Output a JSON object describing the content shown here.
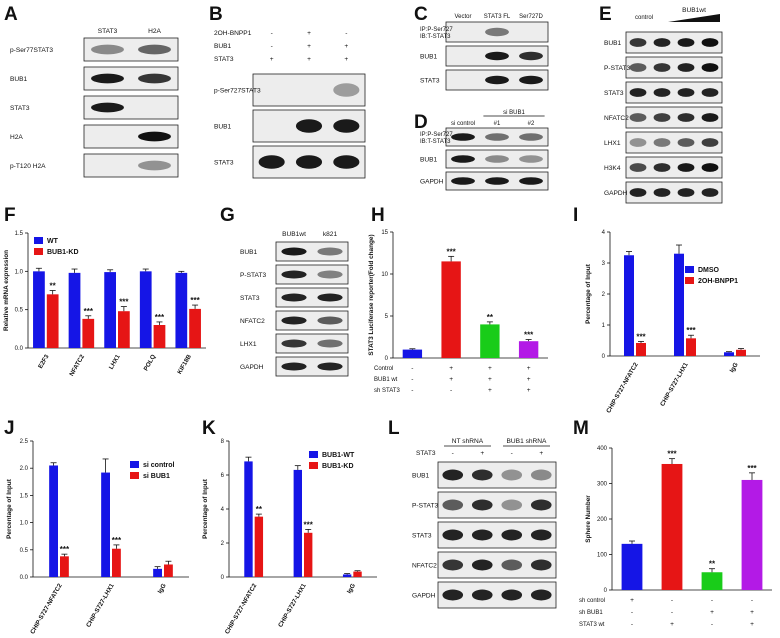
{
  "panels": {
    "A": "A",
    "B": "B",
    "C": "C",
    "D": "D",
    "E": "E",
    "F": "F",
    "G": "G",
    "H": "H",
    "I": "I",
    "J": "J",
    "K": "K",
    "L": "L",
    "M": "M"
  },
  "blots": {
    "A": {
      "lanes": [
        "STAT3",
        "H2A"
      ],
      "rows": [
        {
          "label": "p-Ser77STAT3",
          "bands": [
            0.35,
            0.55
          ]
        },
        {
          "label": "BUB1",
          "bands": [
            0.95,
            0.8
          ]
        },
        {
          "label": "STAT3",
          "bands": [
            0.95,
            0
          ]
        },
        {
          "label": "H2A",
          "bands": [
            0,
            1
          ]
        },
        {
          "label": "p-T120 H2A",
          "bands": [
            0,
            0.3
          ]
        }
      ]
    },
    "B": {
      "conditions": [
        {
          "label": "2OH-BNPP1",
          "marks": [
            "-",
            "+",
            "-"
          ]
        },
        {
          "label": "BUB1",
          "marks": [
            "-",
            "+",
            "+"
          ]
        },
        {
          "label": "STAT3",
          "marks": [
            "+",
            "+",
            "+"
          ]
        }
      ],
      "rows": [
        {
          "label": "p-Ser727STAT3",
          "bands": [
            0,
            0,
            0.25
          ]
        },
        {
          "label": "BUB1",
          "bands": [
            0,
            0.95,
            0.95
          ]
        },
        {
          "label": "STAT3",
          "bands": [
            0.95,
            0.95,
            0.95
          ]
        }
      ]
    },
    "C": {
      "lanes": [
        "Vector",
        "STAT3 FL",
        "Ser727D"
      ],
      "rows": [
        {
          "label1": "IP:P-Ser727",
          "label2": "IB:T-STAT3",
          "bands": [
            0,
            0.45,
            0
          ]
        },
        {
          "label": "BUB1",
          "bands": [
            0,
            0.95,
            0.85
          ]
        },
        {
          "label": "STAT3",
          "bands": [
            0,
            0.95,
            0.95
          ]
        }
      ]
    },
    "D": {
      "lanes": [
        "si control",
        "#1",
        "#2"
      ],
      "group": "si BUB1",
      "rows": [
        {
          "label1": "IP:P-Ser727",
          "label2": "IB:T-STAT3",
          "bands": [
            0.95,
            0.5,
            0.5
          ]
        },
        {
          "label": "BUB1",
          "bands": [
            0.95,
            0.35,
            0.3
          ]
        },
        {
          "label": "GAPDH",
          "bands": [
            0.95,
            0.95,
            0.95
          ]
        }
      ]
    },
    "E": {
      "lanes": [
        "control"
      ],
      "group": "BUB1wt",
      "rows": [
        {
          "label": "BUB1",
          "bands": [
            0.8,
            0.9,
            0.95,
            1
          ]
        },
        {
          "label": "P-STAT3",
          "bands": [
            0.6,
            0.8,
            0.9,
            1
          ]
        },
        {
          "label": "STAT3",
          "bands": [
            0.9,
            0.9,
            0.9,
            0.9
          ]
        },
        {
          "label": "NFATC2",
          "bands": [
            0.6,
            0.75,
            0.85,
            0.95
          ]
        },
        {
          "label": "LHX1",
          "bands": [
            0.3,
            0.45,
            0.6,
            0.75
          ]
        },
        {
          "label": "H3K4",
          "bands": [
            0.7,
            0.85,
            0.95,
            1
          ]
        },
        {
          "label": "GAPDH",
          "bands": [
            0.9,
            0.9,
            0.9,
            0.9
          ]
        }
      ]
    },
    "G": {
      "lanes": [
        "BUB1wt",
        "k821"
      ],
      "rows": [
        {
          "label": "BUB1",
          "bands": [
            0.95,
            0.45
          ]
        },
        {
          "label": "P-STAT3",
          "bands": [
            0.9,
            0.4
          ]
        },
        {
          "label": "STAT3",
          "bands": [
            0.9,
            0.9
          ]
        },
        {
          "label": "NFATC2",
          "bands": [
            0.9,
            0.6
          ]
        },
        {
          "label": "LHX1",
          "bands": [
            0.8,
            0.5
          ]
        },
        {
          "label": "GAPDH",
          "bands": [
            0.9,
            0.9
          ]
        }
      ]
    },
    "L": {
      "groups": [
        "NT shRNA",
        "BUB1 shRNA"
      ],
      "condition": {
        "label": "STAT3",
        "marks": [
          "-",
          "+",
          "-",
          "+"
        ]
      },
      "rows": [
        {
          "label": "BUB1",
          "bands": [
            0.9,
            0.85,
            0.3,
            0.35
          ]
        },
        {
          "label": "P-STAT3",
          "bands": [
            0.6,
            0.85,
            0.3,
            0.85
          ]
        },
        {
          "label": "STAT3",
          "bands": [
            0.9,
            0.9,
            0.9,
            0.9
          ]
        },
        {
          "label": "NFATC2",
          "bands": [
            0.8,
            0.9,
            0.6,
            0.85
          ]
        },
        {
          "label": "GAPDH",
          "bands": [
            0.9,
            0.9,
            0.9,
            0.9
          ]
        }
      ]
    }
  },
  "chart_data": [
    {
      "panel": "F",
      "type": "bar",
      "ylabel": "Relative  mRNA expression",
      "ylim": [
        0,
        1.5
      ],
      "yticks": [
        "0.0",
        "0.5",
        "1.0",
        "1.5"
      ],
      "categories": [
        "E2F3",
        "NFATC2",
        "LHX1",
        "POLQ",
        "KIF18B"
      ],
      "series": [
        {
          "name": "WT",
          "color": "#1515e6",
          "values": [
            1.0,
            0.98,
            0.99,
            1.0,
            0.98
          ],
          "errors": [
            0.04,
            0.05,
            0.03,
            0.03,
            0.02
          ],
          "stars": [
            "",
            "",
            "",
            "",
            ""
          ]
        },
        {
          "name": "BUB1-KD",
          "color": "#e61515",
          "values": [
            0.7,
            0.38,
            0.48,
            0.3,
            0.51
          ],
          "errors": [
            0.05,
            0.04,
            0.06,
            0.04,
            0.05
          ],
          "stars": [
            "**",
            "***",
            "***",
            "***",
            "***"
          ]
        }
      ]
    },
    {
      "panel": "H",
      "type": "bar",
      "ylabel": "STAT3 Luciferase reporter(Fold change)",
      "ylim": [
        0,
        15
      ],
      "yticks": [
        "0",
        "5",
        "10",
        "15"
      ],
      "bars": [
        {
          "value": 1.0,
          "error": 0.1,
          "color": "#1515e6",
          "star": ""
        },
        {
          "value": 11.5,
          "error": 0.6,
          "color": "#e61515",
          "star": "***"
        },
        {
          "value": 4.0,
          "error": 0.3,
          "color": "#19cc19",
          "star": "**"
        },
        {
          "value": 2.0,
          "error": 0.2,
          "color": "#b31ae6",
          "star": "***"
        }
      ],
      "conditions": [
        {
          "label": "Control",
          "marks": [
            "-",
            "+",
            "+",
            "+"
          ]
        },
        {
          "label": "BUB1 wt",
          "marks": [
            "-",
            "+",
            "+",
            "+"
          ]
        },
        {
          "label": "sh STAT3",
          "marks": [
            "-",
            "-",
            "+",
            "+"
          ]
        }
      ]
    },
    {
      "panel": "I",
      "type": "bar",
      "ylabel": "Percentage of Input",
      "ylim": [
        0,
        4
      ],
      "yticks": [
        "0",
        "1",
        "2",
        "3",
        "4"
      ],
      "categories": [
        "CHIP-S727-NFATC2",
        "CHIP-S727-LHX1",
        "IgG"
      ],
      "series": [
        {
          "name": "DMSO",
          "color": "#1515e6",
          "values": [
            3.25,
            3.3,
            0.12
          ],
          "errors": [
            0.12,
            0.28,
            0.02
          ],
          "stars": [
            "",
            "",
            ""
          ]
        },
        {
          "name": "2OH-BNPP1",
          "color": "#e61515",
          "values": [
            0.42,
            0.57,
            0.2
          ],
          "errors": [
            0.05,
            0.1,
            0.04
          ],
          "stars": [
            "***",
            "***",
            ""
          ]
        }
      ]
    },
    {
      "panel": "J",
      "type": "bar",
      "ylabel": "Percentage of Input",
      "ylim": [
        0,
        2.5
      ],
      "yticks": [
        "0.0",
        "0.5",
        "1.0",
        "1.5",
        "2.0",
        "2.5"
      ],
      "categories": [
        "CHIP-S727-NFATC2",
        "CHIP-S727-LHX1",
        "IgG"
      ],
      "series": [
        {
          "name": "si control",
          "color": "#1515e6",
          "values": [
            2.05,
            1.92,
            0.15
          ],
          "errors": [
            0.05,
            0.25,
            0.04
          ],
          "stars": [
            "",
            "",
            ""
          ]
        },
        {
          "name": "si BUB1",
          "color": "#e61515",
          "values": [
            0.38,
            0.52,
            0.23
          ],
          "errors": [
            0.04,
            0.07,
            0.06
          ],
          "stars": [
            "***",
            "***",
            ""
          ]
        }
      ]
    },
    {
      "panel": "K",
      "type": "bar",
      "ylabel": "Percentage of Input",
      "ylim": [
        0,
        8
      ],
      "yticks": [
        "0",
        "2",
        "4",
        "6",
        "8"
      ],
      "categories": [
        "CHIP-S727-NFATC2",
        "CHIP-S727-LHX1",
        "IgG"
      ],
      "series": [
        {
          "name": "BUB1-WT",
          "color": "#1515e6",
          "values": [
            6.8,
            6.3,
            0.15
          ],
          "errors": [
            0.25,
            0.25,
            0.05
          ],
          "stars": [
            "",
            "",
            ""
          ]
        },
        {
          "name": "BUB1-KD",
          "color": "#e61515",
          "values": [
            3.55,
            2.6,
            0.32
          ],
          "errors": [
            0.15,
            0.2,
            0.05
          ],
          "stars": [
            "**",
            "***",
            ""
          ]
        }
      ]
    },
    {
      "panel": "M",
      "type": "bar",
      "ylabel": "Sphere Number",
      "ylim": [
        0,
        400
      ],
      "yticks": [
        "0",
        "100",
        "200",
        "300",
        "400"
      ],
      "bars": [
        {
          "value": 130,
          "error": 8,
          "color": "#1515e6",
          "star": ""
        },
        {
          "value": 355,
          "error": 15,
          "color": "#e61515",
          "star": "***"
        },
        {
          "value": 50,
          "error": 10,
          "color": "#19cc19",
          "star": "**"
        },
        {
          "value": 310,
          "error": 20,
          "color": "#b31ae6",
          "star": "***"
        }
      ],
      "conditions": [
        {
          "label": "sh control",
          "marks": [
            "+",
            "-",
            "-",
            "-"
          ]
        },
        {
          "label": "sh BUB1",
          "marks": [
            "-",
            "-",
            "+",
            "+"
          ]
        },
        {
          "label": "STAT3 wt",
          "marks": [
            "-",
            "+",
            "-",
            "+"
          ]
        }
      ]
    }
  ]
}
